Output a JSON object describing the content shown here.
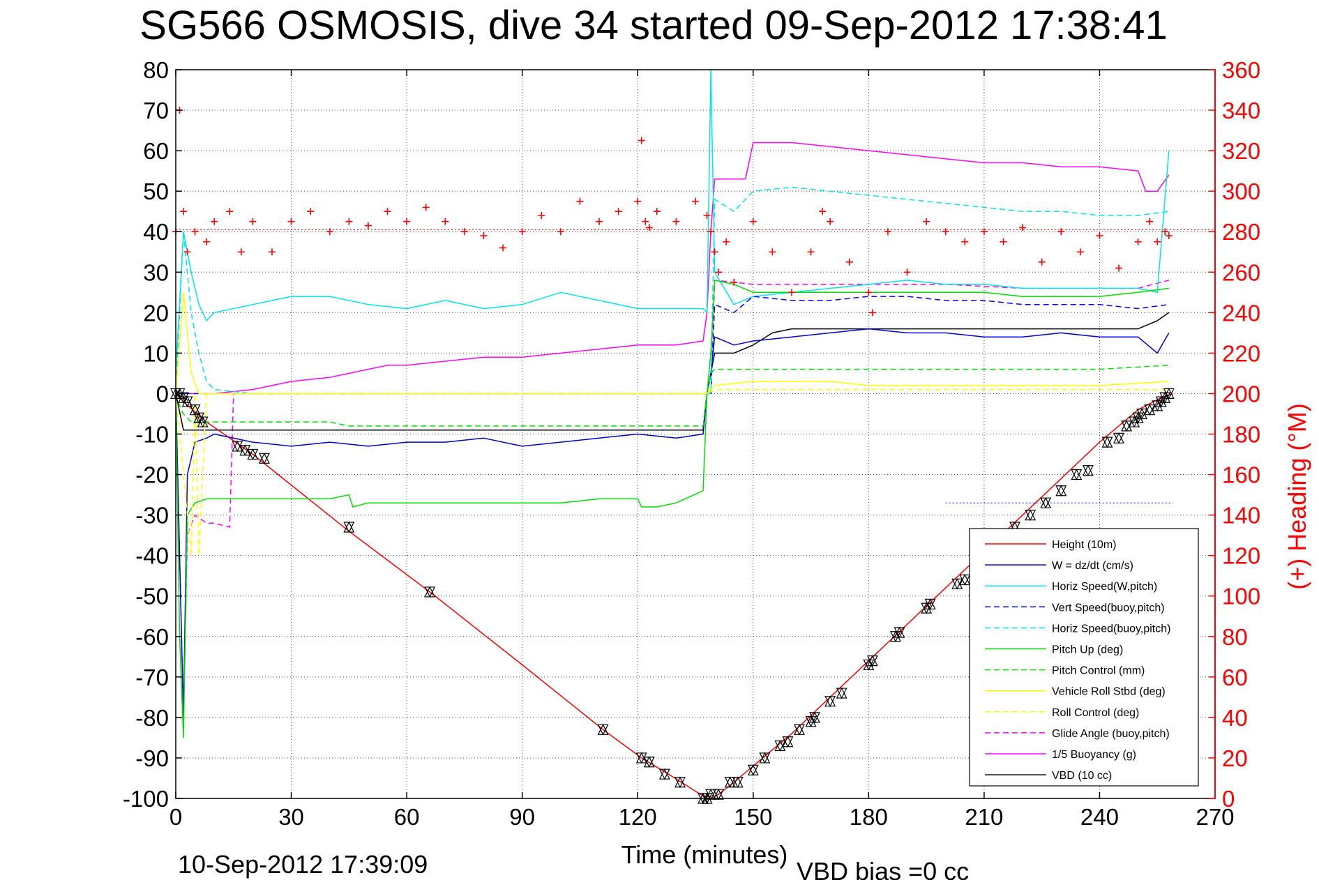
{
  "chart_data": {
    "type": "line",
    "title": "SG566 OSMOSIS, dive 34 started 09-Sep-2012 17:38:41",
    "xlabel": "Time (minutes)",
    "ylabel": "",
    "y2label": "(+) Heading (°M)",
    "xlim": [
      0,
      270
    ],
    "ylim": [
      -100,
      80
    ],
    "y2lim": [
      0,
      360
    ],
    "xticks": [
      "0",
      "30",
      "60",
      "90",
      "120",
      "150",
      "180",
      "210",
      "240",
      "270"
    ],
    "yticks": [
      "80",
      "70",
      "60",
      "50",
      "40",
      "30",
      "20",
      "10",
      "0",
      "-10",
      "-20",
      "-30",
      "-40",
      "-50",
      "-60",
      "-70",
      "-80",
      "-90",
      "-100"
    ],
    "y2ticks": [
      "360",
      "340",
      "320",
      "300",
      "280",
      "260",
      "240",
      "220",
      "200",
      "180",
      "160",
      "140",
      "120",
      "100",
      "80",
      "60",
      "40",
      "20",
      "0"
    ],
    "grid": true,
    "legend_position": "bottom-right",
    "footer_left": "10-Sep-2012 17:39:09",
    "footer_right": "VBD bias =0 cc",
    "series": [
      {
        "name": "Height (10m)",
        "color": "#ff0000",
        "style": "solid",
        "x": [
          0,
          2,
          8,
          20,
          45,
          66,
          90,
          111,
          121,
          128,
          133,
          138,
          139,
          141,
          145,
          150,
          160,
          170,
          180,
          190,
          200,
          210,
          220,
          230,
          240,
          250,
          256,
          259
        ],
        "y": [
          0,
          -2,
          -7,
          -15,
          -34,
          -49,
          -67,
          -83,
          -90,
          -94,
          -97,
          -100,
          -100,
          -99,
          -96,
          -92,
          -84,
          -75,
          -66,
          -57,
          -48,
          -39,
          -30,
          -21,
          -12,
          -4,
          -1,
          0
        ]
      },
      {
        "name": "W = dz/dt (cm/s)",
        "color": "#0000cc",
        "style": "solid",
        "x": [
          0,
          1,
          2,
          3,
          5,
          8,
          10,
          20,
          30,
          40,
          50,
          60,
          70,
          80,
          90,
          100,
          110,
          120,
          130,
          137,
          138,
          139,
          140,
          145,
          150,
          160,
          170,
          180,
          190,
          200,
          210,
          220,
          230,
          240,
          250,
          255,
          258
        ],
        "y": [
          0,
          -40,
          -80,
          -20,
          -12,
          -11,
          -10,
          -12,
          -13,
          -12,
          -13,
          -12,
          -12,
          -11,
          -13,
          -12,
          -11,
          -10,
          -11,
          -10,
          0,
          5,
          14,
          12,
          13,
          14,
          15,
          16,
          15,
          15,
          14,
          14,
          15,
          14,
          14,
          10,
          15
        ]
      },
      {
        "name": "Horiz Speed(W,pitch)",
        "color": "#00e5e5",
        "style": "solid",
        "x": [
          0,
          2,
          4,
          6,
          8,
          10,
          20,
          30,
          40,
          50,
          60,
          70,
          80,
          90,
          100,
          110,
          120,
          130,
          137,
          138,
          139,
          140,
          145,
          150,
          160,
          170,
          180,
          190,
          200,
          210,
          220,
          230,
          240,
          250,
          255,
          258
        ],
        "y": [
          5,
          40,
          30,
          22,
          18,
          20,
          22,
          24,
          24,
          22,
          21,
          23,
          21,
          22,
          25,
          23,
          21,
          21,
          21,
          20,
          80,
          30,
          22,
          24,
          25,
          26,
          27,
          28,
          27,
          27,
          26,
          26,
          26,
          26,
          25,
          60
        ]
      },
      {
        "name": "Vert Speed(buoy,pitch)",
        "color": "#0000ff",
        "style": "dashed",
        "x": [
          0,
          138,
          139,
          140,
          145,
          150,
          160,
          170,
          180,
          190,
          200,
          210,
          220,
          230,
          240,
          250,
          258
        ],
        "y": [
          0,
          0,
          0,
          22,
          20,
          24,
          23,
          23,
          24,
          24,
          23,
          23,
          22,
          22,
          22,
          21,
          22
        ]
      },
      {
        "name": "Horiz Speed(buoy,pitch)",
        "color": "#00e5e5",
        "style": "dashed",
        "x": [
          0,
          2,
          4,
          6,
          8,
          10,
          20,
          138,
          139,
          140,
          145,
          150,
          160,
          170,
          180,
          190,
          200,
          210,
          220,
          230,
          240,
          250,
          258
        ],
        "y": [
          0,
          40,
          20,
          10,
          3,
          1,
          0,
          0,
          0,
          48,
          45,
          50,
          51,
          50,
          49,
          48,
          47,
          46,
          45,
          45,
          44,
          44,
          45
        ]
      },
      {
        "name": "Pitch Up (deg)",
        "color": "#00dd00",
        "style": "solid",
        "x": [
          0,
          1,
          2,
          3,
          5,
          8,
          10,
          20,
          30,
          40,
          45,
          46,
          50,
          60,
          70,
          80,
          90,
          100,
          110,
          120,
          121,
          125,
          130,
          137,
          138,
          139,
          140,
          145,
          150,
          160,
          170,
          180,
          190,
          200,
          210,
          220,
          230,
          240,
          250,
          258
        ],
        "y": [
          0,
          -60,
          -85,
          -30,
          -27,
          -26,
          -26,
          -26,
          -26,
          -26,
          -25,
          -28,
          -27,
          -27,
          -27,
          -27,
          -27,
          -27,
          -26,
          -26,
          -28,
          -28,
          -27,
          -24,
          0,
          10,
          28,
          27,
          25,
          25,
          25,
          25,
          25,
          25,
          25,
          24,
          24,
          24,
          25,
          26
        ]
      },
      {
        "name": "Pitch Control (mm)",
        "color": "#00dd00",
        "style": "dashed",
        "x": [
          0,
          1,
          2,
          4,
          6,
          10,
          20,
          40,
          45,
          60,
          80,
          100,
          120,
          137,
          138,
          139,
          140,
          150,
          160,
          170,
          180,
          200,
          220,
          240,
          258
        ],
        "y": [
          0,
          -3,
          -5,
          -7,
          -7,
          -7,
          -7,
          -7,
          -8,
          -8,
          -8,
          -8,
          -8,
          -8,
          0,
          5,
          6,
          6,
          6,
          6,
          6,
          6,
          6,
          6,
          7
        ]
      },
      {
        "name": "Vehicle Roll Stbd (deg)",
        "color": "#ffff00",
        "style": "solid",
        "x": [
          0,
          2,
          4,
          6,
          10,
          20,
          40,
          60,
          80,
          100,
          120,
          137,
          138,
          140,
          150,
          160,
          170,
          180,
          200,
          220,
          240,
          258
        ],
        "y": [
          0,
          25,
          5,
          0,
          0,
          0,
          0,
          0,
          0,
          0,
          0,
          0,
          0,
          2,
          3,
          3,
          3,
          2,
          2,
          2,
          2,
          3
        ]
      },
      {
        "name": "Roll Control (deg)",
        "color": "#ffff00",
        "style": "dashed",
        "x": [
          0,
          4,
          5,
          6,
          8,
          10,
          20,
          40,
          60,
          80,
          100,
          120,
          137,
          138,
          140,
          150,
          160,
          180,
          200,
          220,
          240,
          258
        ],
        "y": [
          0,
          -40,
          0,
          -40,
          0,
          0,
          0,
          0,
          0,
          0,
          0,
          0,
          0,
          0,
          1,
          1,
          1,
          1,
          1,
          1,
          1,
          1
        ]
      },
      {
        "name": "Glide Angle (buoy,pitch)",
        "color": "#ff00ff",
        "style": "dashed",
        "x": [
          0,
          1,
          2,
          3,
          5,
          8,
          10,
          14,
          15,
          20,
          40,
          60,
          80,
          100,
          120,
          137,
          138,
          139,
          140,
          150,
          160,
          180,
          200,
          220,
          240,
          250,
          258
        ],
        "y": [
          0,
          -40,
          -80,
          -35,
          -30,
          -32,
          -32,
          -33,
          0,
          0,
          0,
          0,
          0,
          0,
          0,
          0,
          0,
          0,
          28,
          27,
          27,
          27,
          27,
          26,
          26,
          26,
          28
        ]
      },
      {
        "name": "1/5 Buoyancy (g)",
        "color": "#ff00ff",
        "style": "solid",
        "x": [
          0,
          10,
          20,
          30,
          40,
          50,
          55,
          60,
          70,
          80,
          90,
          100,
          110,
          120,
          130,
          137,
          138,
          139,
          140,
          145,
          148,
          150,
          160,
          170,
          180,
          190,
          200,
          210,
          220,
          230,
          240,
          250,
          252,
          255,
          258
        ],
        "y": [
          0,
          0,
          1,
          3,
          4,
          6,
          7,
          7,
          8,
          9,
          9,
          10,
          11,
          12,
          12,
          13,
          20,
          40,
          53,
          53,
          53,
          62,
          62,
          61,
          60,
          59,
          58,
          57,
          57,
          56,
          56,
          55,
          50,
          50,
          54
        ]
      },
      {
        "name": "VBD (10 cc)",
        "color": "#000000",
        "style": "solid",
        "x": [
          0,
          2,
          4,
          6,
          10,
          20,
          40,
          60,
          80,
          100,
          120,
          137,
          138,
          139,
          140,
          145,
          150,
          155,
          160,
          170,
          180,
          200,
          220,
          240,
          250,
          255,
          258
        ],
        "y": [
          0,
          -9,
          -9,
          -9,
          -9,
          -9,
          -9,
          -9,
          -9,
          -9,
          -9,
          -9,
          0,
          5,
          10,
          10,
          12,
          15,
          16,
          16,
          16,
          16,
          16,
          16,
          16,
          18,
          20
        ]
      }
    ],
    "heading_series": {
      "name": "(+) Heading",
      "axis": "right",
      "color": "#ff0000",
      "marker": "+",
      "x": [
        0,
        1,
        2,
        3,
        5,
        8,
        10,
        14,
        17,
        20,
        25,
        30,
        35,
        40,
        45,
        50,
        55,
        60,
        65,
        70,
        75,
        80,
        85,
        90,
        95,
        100,
        105,
        110,
        115,
        120,
        121,
        122,
        123,
        125,
        130,
        135,
        138,
        139,
        140,
        141,
        143,
        145,
        150,
        155,
        160,
        165,
        168,
        170,
        175,
        180,
        181,
        185,
        190,
        195,
        200,
        205,
        210,
        215,
        220,
        225,
        230,
        235,
        240,
        245,
        250,
        253,
        255,
        257,
        258
      ],
      "y": [
        280,
        340,
        290,
        270,
        280,
        275,
        285,
        290,
        270,
        285,
        270,
        285,
        290,
        280,
        285,
        283,
        290,
        285,
        292,
        285,
        280,
        278,
        272,
        280,
        288,
        280,
        295,
        285,
        290,
        295,
        325,
        285,
        282,
        290,
        285,
        295,
        288,
        280,
        270,
        260,
        275,
        255,
        285,
        270,
        250,
        270,
        290,
        285,
        265,
        250,
        240,
        280,
        260,
        285,
        280,
        275,
        280,
        275,
        282,
        265,
        280,
        270,
        278,
        262,
        275,
        285,
        275,
        280,
        278
      ]
    },
    "markers": {
      "color": "#000000",
      "x": [
        0,
        1,
        2,
        3,
        5,
        6,
        7,
        16,
        18,
        20,
        23,
        45,
        66,
        111,
        121,
        123,
        127,
        131,
        137,
        138,
        139,
        141,
        144,
        146,
        150,
        153,
        157,
        159,
        162,
        165,
        166,
        170,
        173,
        180,
        181,
        187,
        188,
        195,
        196,
        203,
        205,
        218,
        222,
        226,
        230,
        234,
        237,
        242,
        245,
        247,
        249,
        250,
        251,
        253,
        255,
        256,
        257,
        258
      ],
      "y": [
        0,
        0,
        -1,
        -2,
        -4,
        -6,
        -7,
        -13,
        -14,
        -15,
        -16,
        -33,
        -49,
        -83,
        -90,
        -91,
        -94,
        -96,
        -100,
        -100,
        -99,
        -99,
        -96,
        -96,
        -93,
        -90,
        -87,
        -86,
        -83,
        -81,
        -80,
        -76,
        -74,
        -67,
        -66,
        -60,
        -59,
        -53,
        -52,
        -47,
        -46,
        -33,
        -30,
        -27,
        -24,
        -20,
        -19,
        -12,
        -11,
        -8,
        -7,
        -6,
        -5,
        -4,
        -3,
        -2,
        -1,
        0
      ]
    },
    "hlines": [
      {
        "y": 40.5,
        "color": "#ff0000",
        "style": "dotted",
        "axis": "left"
      },
      {
        "y": -27,
        "color": "#0000ff",
        "style": "dotted",
        "axis": "left",
        "x": [
          200,
          259
        ]
      }
    ]
  }
}
